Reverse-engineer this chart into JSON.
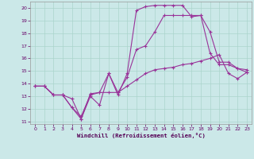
{
  "xlabel": "Windchill (Refroidissement éolien,°C)",
  "background_color": "#cbe8e8",
  "line_color": "#993399",
  "xlim": [
    -0.5,
    23.5
  ],
  "ylim": [
    10.8,
    20.5
  ],
  "xticks": [
    0,
    1,
    2,
    3,
    4,
    5,
    6,
    7,
    8,
    9,
    10,
    11,
    12,
    13,
    14,
    15,
    16,
    17,
    18,
    19,
    20,
    21,
    22,
    23
  ],
  "yticks": [
    11,
    12,
    13,
    14,
    15,
    16,
    17,
    18,
    19,
    20
  ],
  "grid_color": "#aad4cc",
  "line1_x": [
    0,
    1,
    2,
    3,
    4,
    5,
    6,
    7,
    8,
    9,
    10,
    11,
    12,
    13,
    14,
    15,
    16,
    17,
    18,
    19,
    20,
    21,
    22,
    23
  ],
  "line1_y": [
    13.8,
    13.8,
    13.1,
    13.1,
    12.8,
    11.2,
    13.0,
    12.3,
    14.8,
    13.1,
    14.8,
    19.8,
    20.1,
    20.2,
    20.2,
    20.2,
    20.2,
    19.3,
    19.4,
    18.1,
    15.7,
    15.7,
    15.2,
    14.9
  ],
  "line2_x": [
    0,
    1,
    2,
    3,
    4,
    5,
    6,
    7,
    8,
    9,
    10,
    11,
    12,
    13,
    14,
    15,
    16,
    17,
    18,
    19,
    20,
    21,
    22,
    23
  ],
  "line2_y": [
    13.8,
    13.8,
    13.1,
    13.1,
    12.1,
    11.2,
    13.2,
    13.3,
    14.8,
    13.3,
    14.5,
    16.7,
    17.0,
    18.1,
    19.4,
    19.4,
    19.4,
    19.4,
    19.4,
    16.4,
    15.5,
    15.5,
    15.2,
    15.1
  ],
  "line3_x": [
    0,
    1,
    2,
    3,
    4,
    5,
    6,
    7,
    8,
    9,
    10,
    11,
    12,
    13,
    14,
    15,
    16,
    17,
    18,
    19,
    20,
    21,
    22,
    23
  ],
  "line3_y": [
    13.8,
    13.8,
    13.1,
    13.1,
    12.1,
    11.4,
    13.1,
    13.3,
    13.3,
    13.3,
    13.8,
    14.3,
    14.8,
    15.1,
    15.2,
    15.3,
    15.5,
    15.6,
    15.8,
    16.0,
    16.3,
    14.8,
    14.4,
    14.9
  ]
}
